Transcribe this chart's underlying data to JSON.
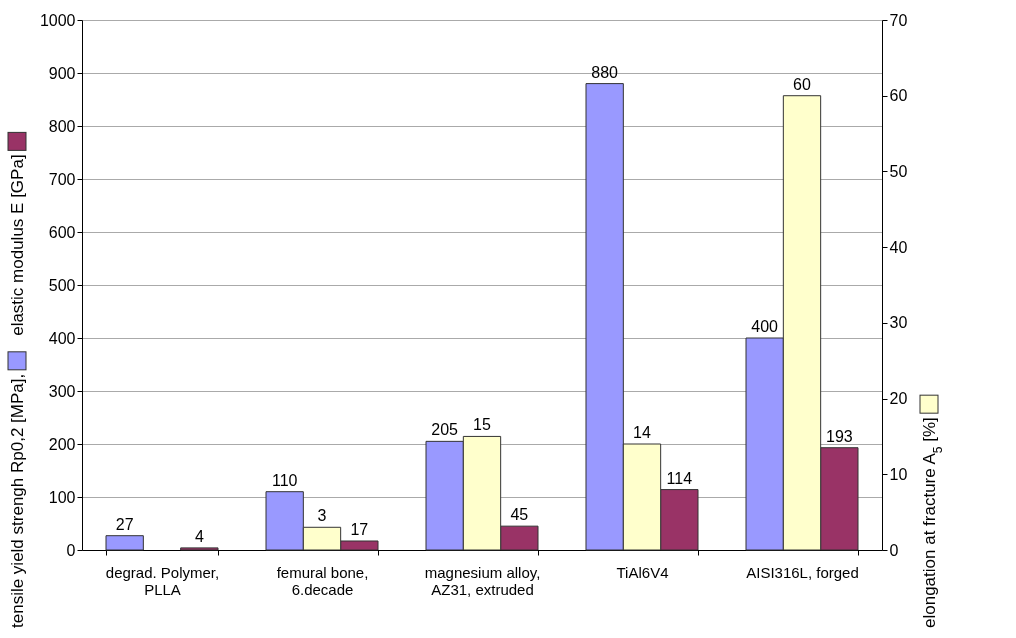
{
  "chart_data": {
    "type": "bar",
    "categories": [
      "degrad. Polymer, PLLA",
      "femural bone, 6.decade",
      "magnesium alloy, AZ31, extruded",
      "TiAl6V4",
      "AISI316L, forged"
    ],
    "series": [
      {
        "name": "tensile yield strengh Rp0,2 [MPa],",
        "color": "#9999ff",
        "values": [
          27,
          110,
          205,
          880,
          400
        ]
      },
      {
        "name": "elongation at fracture A$_{5}$ [%]",
        "color": "#ffffcc",
        "values": [
          null,
          3,
          15,
          14,
          60
        ],
        "axis": "y2"
      },
      {
        "name": "elastic modulus E [GPa]",
        "color": "#993366",
        "values": [
          4,
          17,
          45,
          114,
          193
        ]
      }
    ],
    "ylim": [
      0,
      1000
    ],
    "yticks": [
      0,
      100,
      200,
      300,
      400,
      500,
      600,
      700,
      800,
      900,
      1000
    ],
    "y2lim": [
      0,
      70
    ],
    "y2ticks": [
      0,
      10,
      20,
      30,
      40,
      50,
      60,
      70
    ],
    "grid": "y",
    "data_labels": true,
    "legend": "left"
  }
}
